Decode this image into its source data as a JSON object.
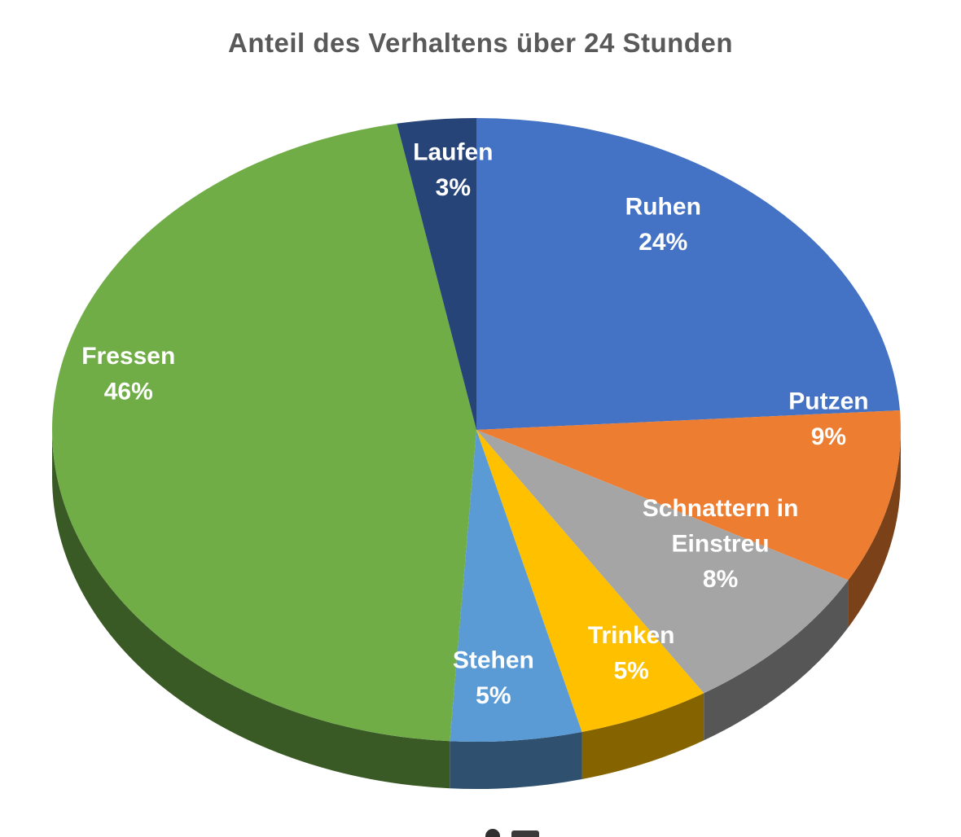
{
  "chart": {
    "title": "Anteil des Verhaltens über 24 Stunden"
  },
  "chart_data": {
    "type": "pie",
    "style": "3d",
    "title": "Anteil des Verhaltens über 24 Stunden",
    "unit": "%",
    "start_angle_deg": -90,
    "direction": "clockwise",
    "legend": "none",
    "total": 100,
    "slices": [
      {
        "label": "Ruhen",
        "label_lines": [
          "Ruhen"
        ],
        "value": 24,
        "pct_label": "24%",
        "color": "#4472C4"
      },
      {
        "label": "Putzen",
        "label_lines": [
          "Putzen"
        ],
        "value": 9,
        "pct_label": "9%",
        "color": "#ED7D31"
      },
      {
        "label": "Schnattern in Einstreu",
        "label_lines": [
          "Schnattern in",
          "Einstreu"
        ],
        "value": 8,
        "pct_label": "8%",
        "color": "#A5A5A5"
      },
      {
        "label": "Trinken",
        "label_lines": [
          "Trinken"
        ],
        "value": 5,
        "pct_label": "5%",
        "color": "#FFC000"
      },
      {
        "label": "Stehen",
        "label_lines": [
          "Stehen"
        ],
        "value": 5,
        "pct_label": "5%",
        "color": "#5B9BD5"
      },
      {
        "label": "Fressen",
        "label_lines": [
          "Fressen"
        ],
        "value": 46,
        "pct_label": "46%",
        "color": "#70AD47"
      },
      {
        "label": "Laufen",
        "label_lines": [
          "Laufen"
        ],
        "value": 3,
        "pct_label": "3%",
        "color": "#264478"
      }
    ]
  }
}
